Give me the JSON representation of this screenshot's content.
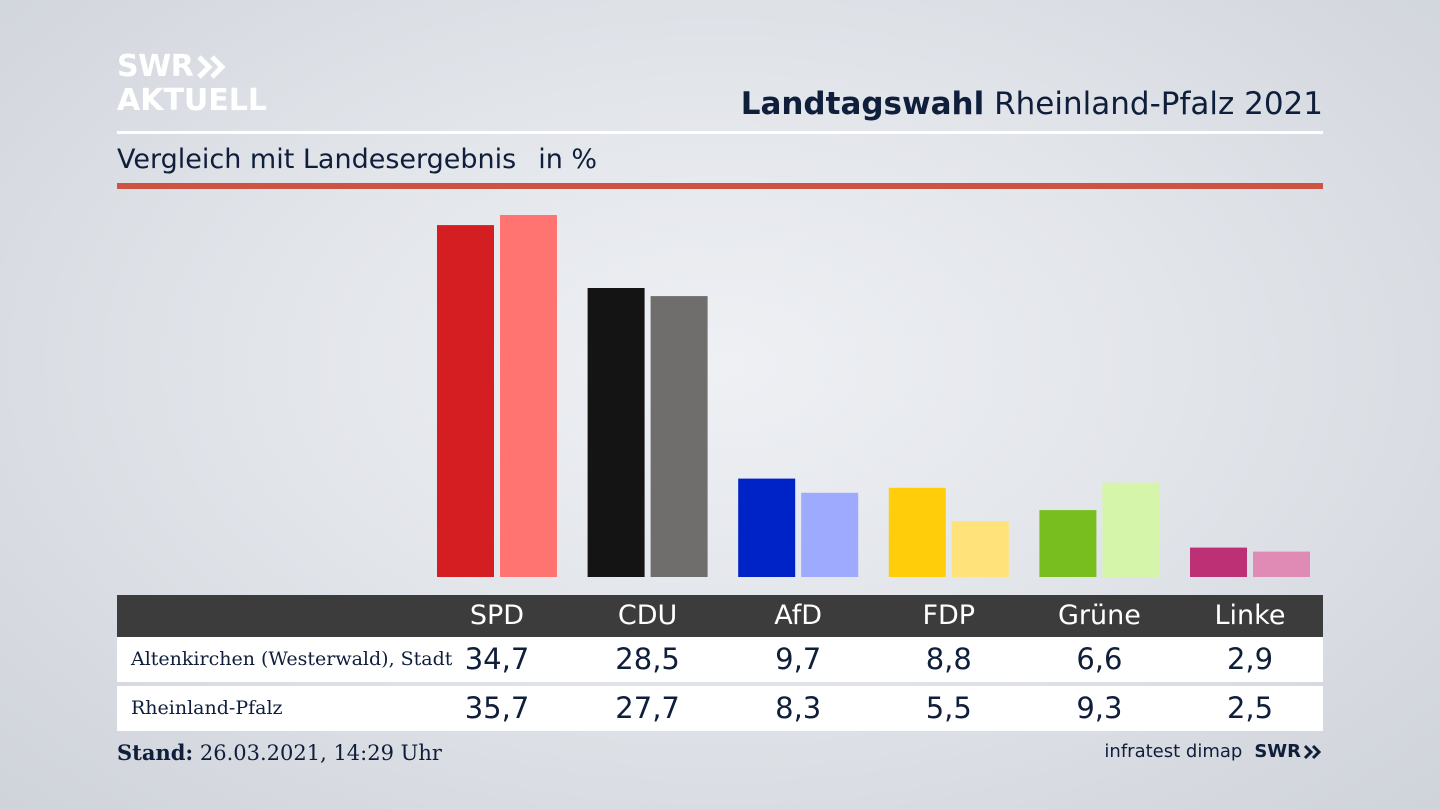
{
  "logo": {
    "line1": "SWR",
    "line2": "AKTUELL"
  },
  "header": {
    "title_bold": "Landtagswahl",
    "title_rest": " Rheinland-Pfalz 2021"
  },
  "subtitle": {
    "text": "Vergleich mit Landesergebnis",
    "unit": "in %"
  },
  "colors": {
    "accent_rule": "#cd5342",
    "table_header": "#3c3c3c"
  },
  "chart_data": {
    "type": "bar",
    "categories": [
      "SPD",
      "CDU",
      "AfD",
      "FDP",
      "Grüne",
      "Linke"
    ],
    "series": [
      {
        "name": "Altenkirchen (Westerwald), Stadt",
        "values": [
          34.7,
          28.5,
          9.7,
          8.8,
          6.6,
          2.9
        ],
        "colors": [
          "#d41e21",
          "#141414",
          "#0023c8",
          "#ffcd0a",
          "#78be1e",
          "#be3075"
        ]
      },
      {
        "name": "Rheinland-Pfalz",
        "values": [
          35.7,
          27.7,
          8.3,
          5.5,
          9.3,
          2.5
        ],
        "colors": [
          "#ff7471",
          "#6f6e6d",
          "#9daafe",
          "#ffe37a",
          "#d4f5aa",
          "#e08bb6"
        ]
      }
    ],
    "value_labels": [
      [
        "34,7",
        "28,5",
        "9,7",
        "8,8",
        "6,6",
        "2,9"
      ],
      [
        "35,7",
        "27,7",
        "8,3",
        "5,5",
        "9,3",
        "2,5"
      ]
    ],
    "xlabel": "",
    "ylabel": "",
    "ylim": [
      0,
      35.7
    ],
    "grid": false,
    "legend": "table-below"
  },
  "footer": {
    "stand_label": "Stand:",
    "stand_value": " 26.03.2021, 14:29 Uhr",
    "source": "infratest dimap",
    "brand": "SWR"
  }
}
